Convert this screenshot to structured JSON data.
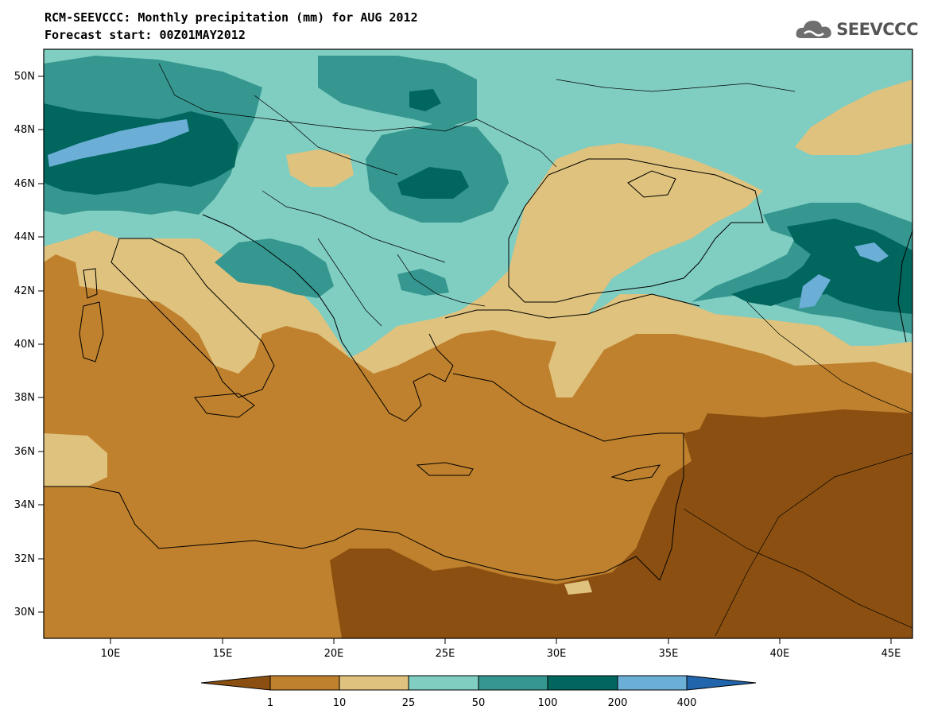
{
  "title": {
    "line1": "RCM-SEEVCCC: Monthly precipitation (mm) for AUG 2012",
    "line2": "Forecast start: 00Z01MAY2012"
  },
  "logo": {
    "text": "SEEVCCC",
    "icon": "cloud-icon"
  },
  "map": {
    "lon_range": [
      7,
      46
    ],
    "lat_range": [
      29,
      51
    ],
    "lat_ticks": [
      "50N",
      "48N",
      "46N",
      "44N",
      "42N",
      "40N",
      "38N",
      "36N",
      "34N",
      "32N",
      "30N"
    ],
    "lon_ticks": [
      "10E",
      "15E",
      "20E",
      "25E",
      "30E",
      "35E",
      "40E",
      "45E"
    ]
  },
  "colorbar": {
    "labels": [
      "1",
      "10",
      "25",
      "50",
      "100",
      "200",
      "400"
    ],
    "colors": [
      "#8b5011",
      "#bf812d",
      "#dfc27d",
      "#80cdc1",
      "#35978f",
      "#01665e",
      "#6baed6",
      "#2166ac"
    ]
  }
}
